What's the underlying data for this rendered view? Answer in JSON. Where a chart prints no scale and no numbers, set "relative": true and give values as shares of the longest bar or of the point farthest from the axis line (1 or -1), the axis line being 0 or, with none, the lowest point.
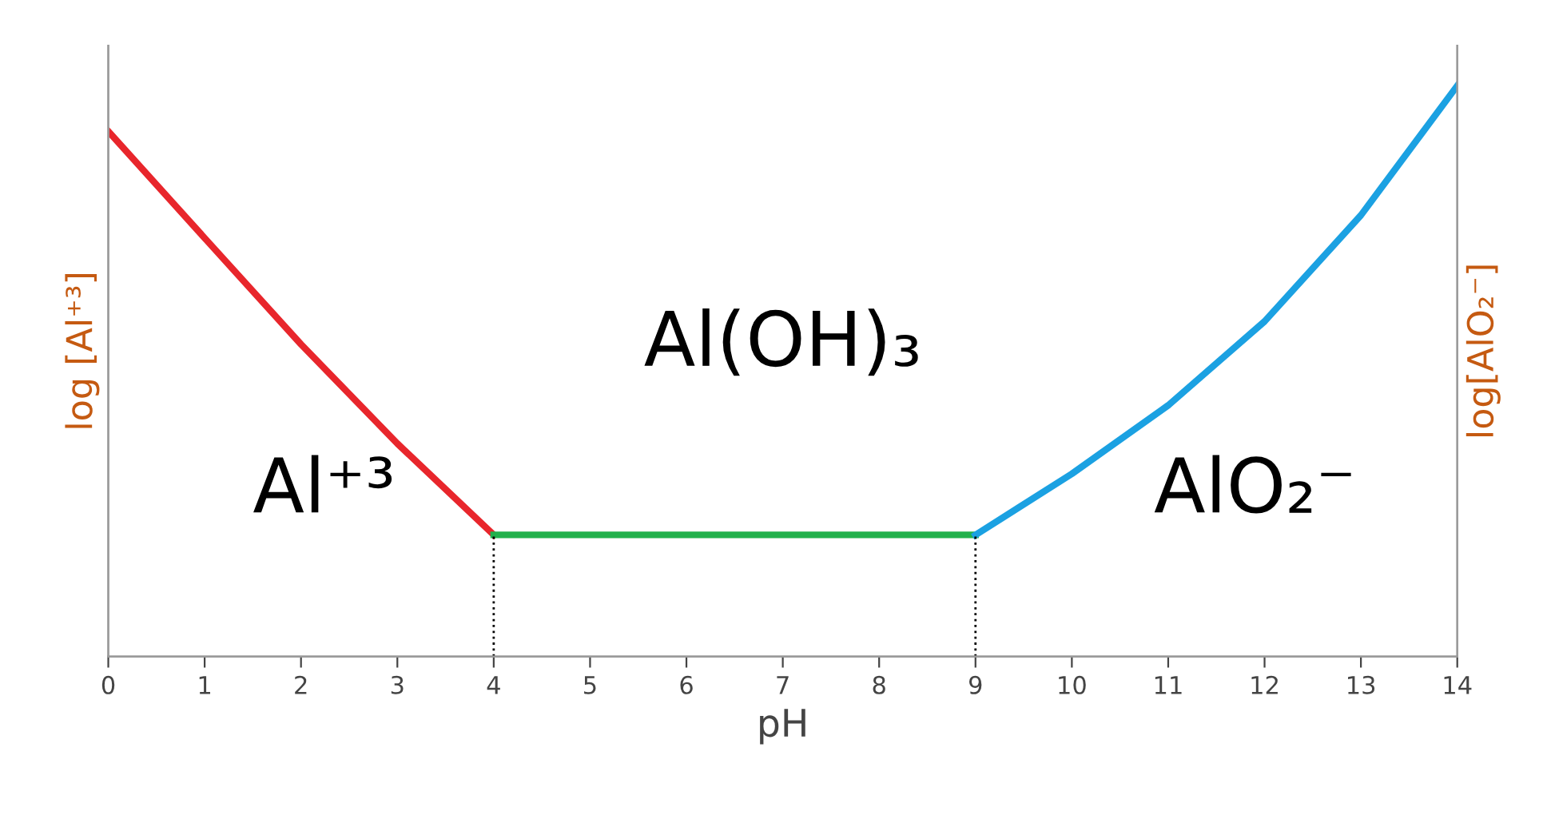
{
  "chart_data": {
    "type": "line",
    "relative": true,
    "xlabel": "pH",
    "ylabel": "log [Al⁺³]",
    "y2label": "log[AlO₂⁻]",
    "xlim": [
      0,
      14
    ],
    "xticks": [
      0,
      1,
      2,
      3,
      4,
      5,
      6,
      7,
      8,
      9,
      10,
      11,
      12,
      13,
      14
    ],
    "series": [
      {
        "color": "#e8262c",
        "x": [
          0,
          1,
          2,
          3,
          4
        ],
        "values": [
          0.92,
          0.733,
          0.547,
          0.373,
          0.213
        ]
      },
      {
        "color": "#22b14c",
        "x": [
          4,
          9
        ],
        "values": [
          0.213,
          0.213
        ]
      },
      {
        "color": "#1ba1e2",
        "x": [
          9,
          10,
          11,
          12,
          13,
          14
        ],
        "values": [
          0.213,
          0.32,
          0.44,
          0.587,
          0.773,
          1
        ]
      }
    ],
    "ref_lines": [
      {
        "axis": "x",
        "value": 4,
        "line_style": "dotted",
        "color": "#000000"
      },
      {
        "axis": "x",
        "value": 9,
        "line_style": "dotted",
        "color": "#000000"
      }
    ],
    "annotations": [
      "Al⁺³",
      "Al(OH)₃",
      "AlO₂⁻"
    ],
    "grid": false,
    "legend": false,
    "marker": "none",
    "line_style": "solid"
  }
}
